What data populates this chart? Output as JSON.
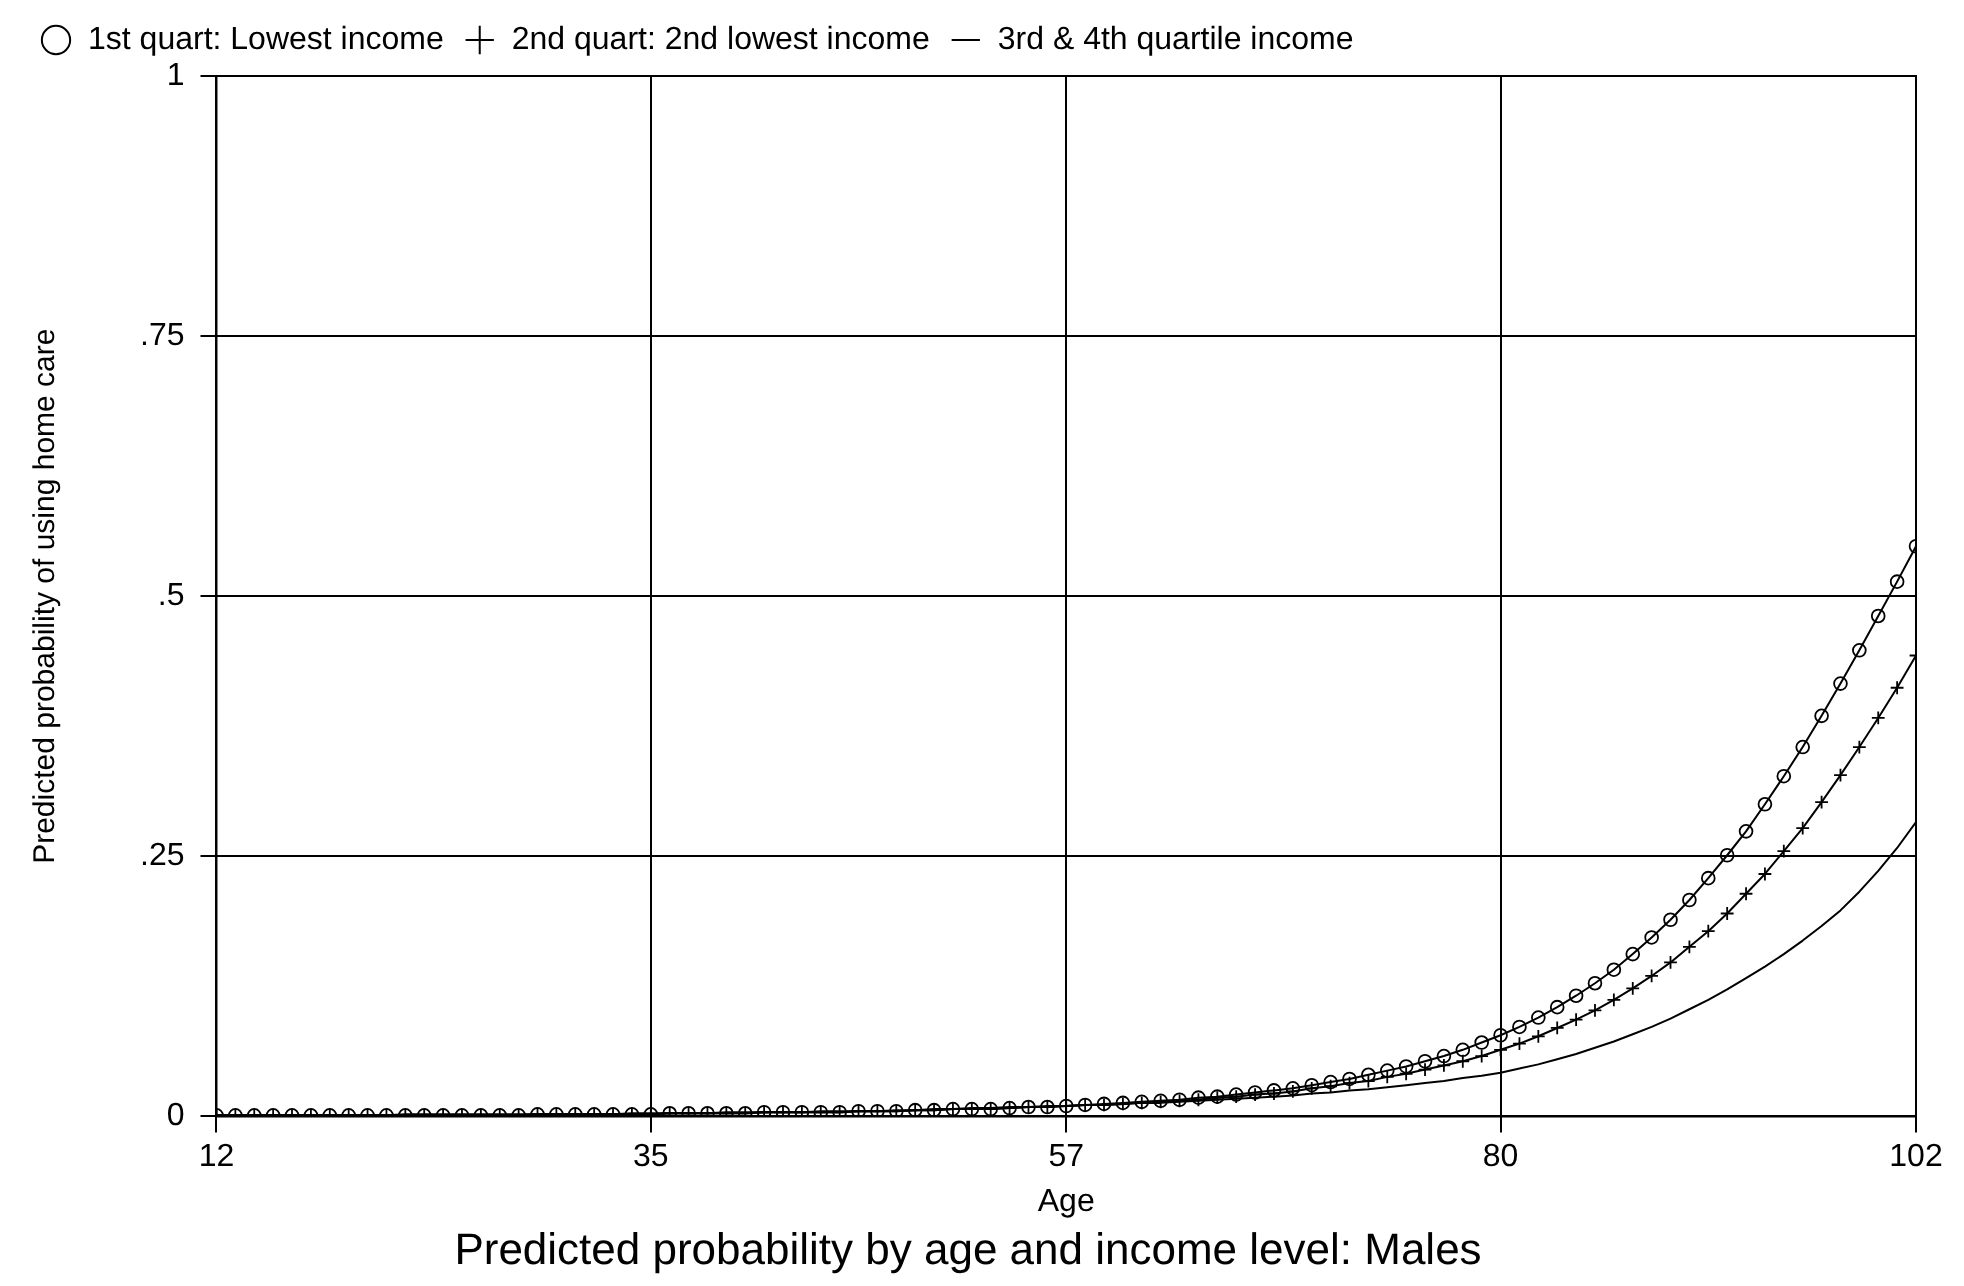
{
  "chart_data": {
    "type": "line",
    "title": "Predicted probability by age and income level: Males",
    "xlabel": "Age",
    "ylabel": "Predicted probability of using home care",
    "xlim": [
      12,
      102
    ],
    "xticks": [
      12,
      35,
      57,
      80,
      102
    ],
    "ylim": [
      0,
      1
    ],
    "yticks": [
      0,
      {
        "value": 0.25,
        "label": ".25"
      },
      {
        "value": 0.5,
        "label": ".5"
      },
      {
        "value": 0.75,
        "label": ".75"
      },
      1
    ],
    "grid": true,
    "legend": "top",
    "line_style": "solid",
    "x": [
      12,
      13,
      14,
      15,
      16,
      17,
      18,
      19,
      20,
      21,
      22,
      23,
      24,
      25,
      26,
      27,
      28,
      29,
      30,
      31,
      32,
      33,
      34,
      35,
      36,
      37,
      38,
      39,
      40,
      41,
      42,
      43,
      44,
      45,
      46,
      47,
      48,
      49,
      50,
      51,
      52,
      53,
      54,
      55,
      56,
      57,
      58,
      59,
      60,
      61,
      62,
      63,
      64,
      65,
      66,
      67,
      68,
      69,
      70,
      71,
      72,
      73,
      74,
      75,
      76,
      77,
      78,
      79,
      80,
      81,
      82,
      83,
      84,
      85,
      86,
      87,
      88,
      89,
      90,
      91,
      92,
      93,
      94,
      95,
      96,
      97,
      98,
      99,
      100,
      101,
      102
    ],
    "series": [
      {
        "name": "1st quart: Lowest income",
        "color": "#000000",
        "marker": "circle",
        "values": [
          0.001,
          0.001,
          0.001,
          0.001,
          0.001,
          0.001,
          0.001,
          0.001,
          0.001,
          0.001,
          0.001,
          0.001,
          0.001,
          0.001,
          0.001,
          0.001,
          0.001,
          0.002,
          0.002,
          0.002,
          0.002,
          0.002,
          0.002,
          0.002,
          0.003,
          0.003,
          0.003,
          0.003,
          0.003,
          0.004,
          0.004,
          0.004,
          0.004,
          0.004,
          0.005,
          0.005,
          0.005,
          0.006,
          0.006,
          0.007,
          0.007,
          0.007,
          0.008,
          0.009,
          0.009,
          0.01,
          0.011,
          0.012,
          0.013,
          0.014,
          0.015,
          0.016,
          0.018,
          0.019,
          0.021,
          0.023,
          0.025,
          0.027,
          0.03,
          0.033,
          0.036,
          0.04,
          0.044,
          0.048,
          0.053,
          0.058,
          0.064,
          0.071,
          0.078,
          0.086,
          0.095,
          0.105,
          0.116,
          0.128,
          0.141,
          0.156,
          0.172,
          0.189,
          0.208,
          0.229,
          0.251,
          0.274,
          0.3,
          0.327,
          0.355,
          0.385,
          0.416,
          0.448,
          0.481,
          0.514,
          0.548
        ]
      },
      {
        "name": "2nd quart: 2nd lowest income",
        "color": "#000000",
        "marker": "cross",
        "values": [
          0.001,
          0.001,
          0.001,
          0.001,
          0.001,
          0.001,
          0.001,
          0.001,
          0.001,
          0.001,
          0.001,
          0.001,
          0.001,
          0.001,
          0.001,
          0.001,
          0.001,
          0.002,
          0.002,
          0.002,
          0.002,
          0.002,
          0.002,
          0.002,
          0.003,
          0.003,
          0.003,
          0.003,
          0.003,
          0.004,
          0.004,
          0.004,
          0.004,
          0.004,
          0.005,
          0.005,
          0.005,
          0.006,
          0.006,
          0.007,
          0.007,
          0.007,
          0.008,
          0.009,
          0.009,
          0.01,
          0.011,
          0.011,
          0.012,
          0.013,
          0.014,
          0.015,
          0.016,
          0.018,
          0.019,
          0.021,
          0.022,
          0.024,
          0.027,
          0.029,
          0.032,
          0.034,
          0.038,
          0.041,
          0.045,
          0.049,
          0.053,
          0.058,
          0.064,
          0.07,
          0.077,
          0.085,
          0.093,
          0.102,
          0.112,
          0.123,
          0.135,
          0.148,
          0.163,
          0.178,
          0.195,
          0.214,
          0.233,
          0.255,
          0.277,
          0.302,
          0.328,
          0.355,
          0.383,
          0.412,
          0.443
        ]
      },
      {
        "name": "3rd & 4th quartile income",
        "color": "#000000",
        "marker": "none",
        "values": [
          0.001,
          0.001,
          0.001,
          0.001,
          0.001,
          0.001,
          0.001,
          0.001,
          0.001,
          0.001,
          0.002,
          0.002,
          0.002,
          0.002,
          0.002,
          0.002,
          0.002,
          0.002,
          0.002,
          0.002,
          0.002,
          0.002,
          0.003,
          0.003,
          0.003,
          0.003,
          0.003,
          0.004,
          0.004,
          0.004,
          0.004,
          0.004,
          0.005,
          0.005,
          0.005,
          0.005,
          0.006,
          0.006,
          0.007,
          0.007,
          0.008,
          0.008,
          0.009,
          0.009,
          0.01,
          0.01,
          0.011,
          0.011,
          0.012,
          0.013,
          0.013,
          0.014,
          0.015,
          0.016,
          0.017,
          0.018,
          0.019,
          0.02,
          0.022,
          0.023,
          0.025,
          0.026,
          0.028,
          0.03,
          0.032,
          0.034,
          0.037,
          0.039,
          0.042,
          0.046,
          0.05,
          0.055,
          0.06,
          0.066,
          0.072,
          0.079,
          0.086,
          0.094,
          0.103,
          0.112,
          0.122,
          0.133,
          0.144,
          0.156,
          0.169,
          0.183,
          0.198,
          0.216,
          0.236,
          0.258,
          0.283
        ]
      }
    ]
  }
}
